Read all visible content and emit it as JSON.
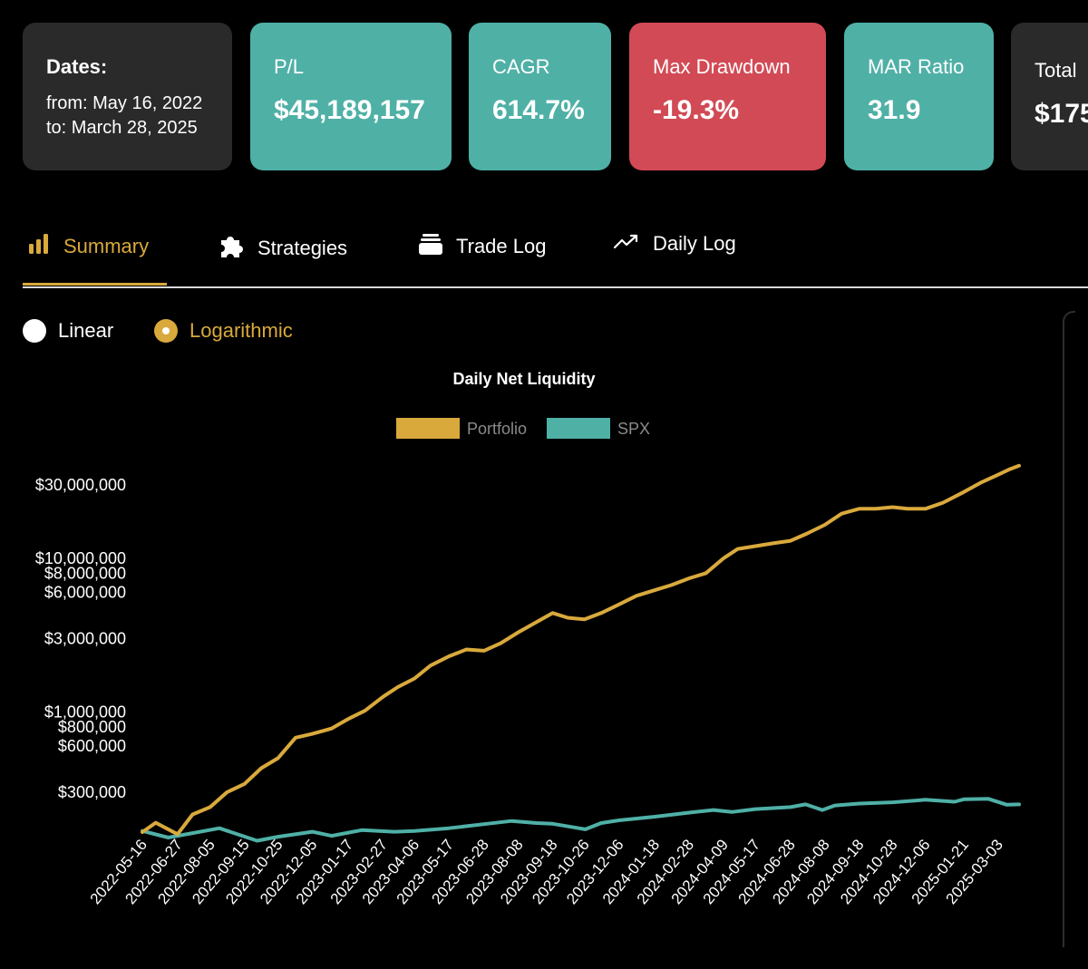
{
  "cards": {
    "dates": {
      "label": "Dates:",
      "from": "from: May 16, 2022",
      "to": "to: March 28, 2025"
    },
    "pl": {
      "label": "P/L",
      "value": "$45,189,157",
      "color": "#4fb0a6"
    },
    "cagr": {
      "label": "CAGR",
      "value": "614.7%",
      "color": "#4fb0a6"
    },
    "drawdown": {
      "label": "Max Drawdown",
      "value": "-19.3%",
      "color": "#d24a55"
    },
    "mar": {
      "label": "MAR Ratio",
      "value": "31.9",
      "color": "#4fb0a6"
    },
    "total": {
      "label": "Total",
      "value": "$175"
    }
  },
  "tabs": [
    {
      "label": "Summary",
      "icon": "bar-chart-icon",
      "active": true
    },
    {
      "label": "Strategies",
      "icon": "puzzle-icon",
      "active": false
    },
    {
      "label": "Trade Log",
      "icon": "stack-icon",
      "active": false
    },
    {
      "label": "Daily Log",
      "icon": "trend-icon",
      "active": false
    }
  ],
  "scale_options": [
    {
      "label": "Linear",
      "selected": false
    },
    {
      "label": "Logarithmic",
      "selected": true
    }
  ],
  "accent_color": "#d9a93c",
  "chart_data": {
    "type": "line",
    "title": "Daily Net Liquidity",
    "yscale": "log",
    "ylim": [
      100000,
      50000000
    ],
    "yticks": [
      {
        "value": 30000000,
        "label": "$30,000,000"
      },
      {
        "value": 10000000,
        "label": "$10,000,000"
      },
      {
        "value": 8000000,
        "label": "$8,000,000"
      },
      {
        "value": 6000000,
        "label": "$6,000,000"
      },
      {
        "value": 3000000,
        "label": "$3,000,000"
      },
      {
        "value": 1000000,
        "label": "$1,000,000"
      },
      {
        "value": 800000,
        "label": "$800,000"
      },
      {
        "value": 600000,
        "label": "$600,000"
      },
      {
        "value": 300000,
        "label": "$300,000"
      }
    ],
    "x_tick_labels": [
      "2022-05-16",
      "2022-06-27",
      "2022-08-05",
      "2022-09-15",
      "2022-10-25",
      "2022-12-05",
      "2023-01-17",
      "2023-02-27",
      "2023-04-06",
      "2023-05-17",
      "2023-06-28",
      "2023-08-08",
      "2023-09-18",
      "2023-10-26",
      "2023-12-06",
      "2024-01-18",
      "2024-02-28",
      "2024-04-09",
      "2024-05-17",
      "2024-06-28",
      "2024-08-08",
      "2024-09-18",
      "2024-10-28",
      "2024-12-06",
      "2025-01-21",
      "2025-03-03"
    ],
    "legend_position": "top",
    "series": [
      {
        "name": "Portfolio",
        "color": "#d9a93c",
        "x": [
          "2022-05-16",
          "2022-06-01",
          "2022-06-27",
          "2022-07-15",
          "2022-08-05",
          "2022-08-25",
          "2022-09-15",
          "2022-10-05",
          "2022-10-25",
          "2022-11-15",
          "2022-12-05",
          "2022-12-28",
          "2023-01-17",
          "2023-02-06",
          "2023-02-27",
          "2023-03-17",
          "2023-04-06",
          "2023-04-25",
          "2023-05-17",
          "2023-06-07",
          "2023-06-28",
          "2023-07-18",
          "2023-08-08",
          "2023-08-28",
          "2023-09-18",
          "2023-10-06",
          "2023-10-26",
          "2023-11-15",
          "2023-12-06",
          "2023-12-27",
          "2024-01-18",
          "2024-02-07",
          "2024-02-28",
          "2024-03-19",
          "2024-04-09",
          "2024-04-26",
          "2024-05-17",
          "2024-06-07",
          "2024-06-28",
          "2024-07-18",
          "2024-08-08",
          "2024-08-28",
          "2024-09-18",
          "2024-10-08",
          "2024-10-28",
          "2024-11-15",
          "2024-12-06",
          "2024-12-27",
          "2025-01-21",
          "2025-02-10",
          "2025-03-03",
          "2025-03-17",
          "2025-03-28"
        ],
        "y": [
          165000,
          190000,
          160000,
          215000,
          240000,
          300000,
          340000,
          430000,
          500000,
          680000,
          720000,
          780000,
          900000,
          1020000,
          1250000,
          1450000,
          1650000,
          2000000,
          2300000,
          2550000,
          2500000,
          2800000,
          3300000,
          3800000,
          4400000,
          4100000,
          4000000,
          4400000,
          5000000,
          5700000,
          6200000,
          6700000,
          7400000,
          8000000,
          10000000,
          11500000,
          12000000,
          12500000,
          13000000,
          14500000,
          16500000,
          19500000,
          21000000,
          21000000,
          21500000,
          21000000,
          21000000,
          23000000,
          27000000,
          31000000,
          35000000,
          38000000,
          40000000
        ]
      },
      {
        "name": "SPX",
        "color": "#4fb0a6",
        "x": [
          "2022-05-16",
          "2022-06-16",
          "2022-08-16",
          "2022-09-30",
          "2022-10-25",
          "2022-12-05",
          "2022-12-28",
          "2023-02-02",
          "2023-03-13",
          "2023-04-06",
          "2023-05-17",
          "2023-06-28",
          "2023-07-31",
          "2023-08-30",
          "2023-09-18",
          "2023-10-27",
          "2023-11-15",
          "2023-12-06",
          "2024-01-18",
          "2024-02-28",
          "2024-03-28",
          "2024-04-19",
          "2024-05-17",
          "2024-06-28",
          "2024-07-16",
          "2024-08-05",
          "2024-08-20",
          "2024-09-18",
          "2024-10-28",
          "2024-12-06",
          "2025-01-10",
          "2025-01-21",
          "2025-02-19",
          "2025-03-13",
          "2025-03-28"
        ],
        "y": [
          168000,
          152000,
          175000,
          145000,
          154000,
          166000,
          156000,
          170000,
          166000,
          168000,
          175000,
          186000,
          195000,
          189000,
          187000,
          172000,
          189000,
          197000,
          208000,
          221000,
          230000,
          223000,
          233000,
          240000,
          250000,
          230000,
          246000,
          253000,
          258000,
          268000,
          260000,
          270000,
          272000,
          249000,
          250000
        ]
      }
    ]
  }
}
